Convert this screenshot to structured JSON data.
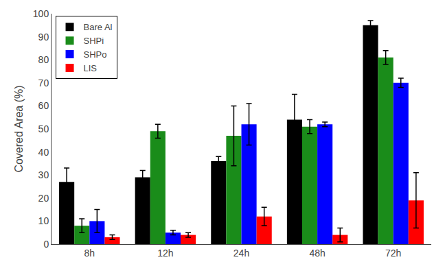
{
  "chart_data": {
    "type": "bar",
    "ylabel": "Covered Area (%)",
    "categories": [
      "8h",
      "12h",
      "24h",
      "48h",
      "72h"
    ],
    "series": [
      {
        "name": "Bare Al",
        "color": "#000000",
        "values": [
          27,
          29,
          36,
          54,
          95
        ],
        "errors": [
          6,
          3,
          2,
          11,
          2
        ]
      },
      {
        "name": "SHPi",
        "color": "#1a8c1a",
        "values": [
          8,
          49,
          47,
          51,
          81
        ],
        "errors": [
          3,
          3,
          13,
          3,
          3
        ]
      },
      {
        "name": "SHPo",
        "color": "#0000ff",
        "values": [
          10,
          5,
          52,
          52,
          70
        ],
        "errors": [
          5,
          1,
          9,
          1,
          2
        ]
      },
      {
        "name": "LIS",
        "color": "#ff0000",
        "values": [
          3,
          4,
          12,
          4,
          19
        ],
        "errors": [
          1,
          1,
          4,
          3,
          12
        ]
      }
    ],
    "ylim": [
      0,
      100
    ],
    "yticks": [
      0,
      10,
      20,
      30,
      40,
      50,
      60,
      70,
      80,
      90,
      100
    ],
    "grid": false,
    "legend": "upper left"
  }
}
